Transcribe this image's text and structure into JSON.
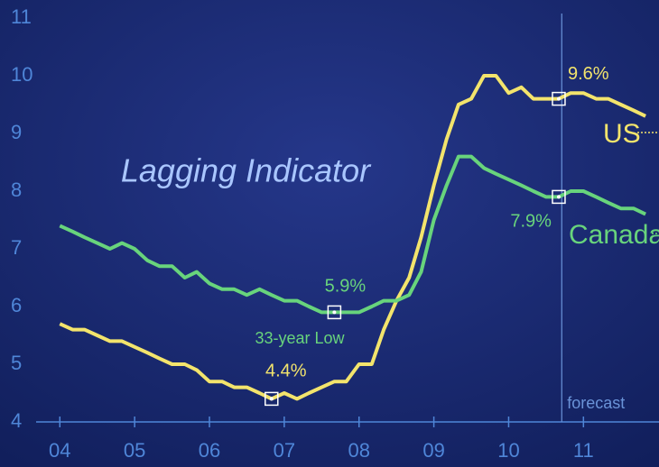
{
  "chart_data": {
    "type": "line",
    "title": "Lagging Indicator",
    "x": [
      2004,
      2004.17,
      2004.33,
      2004.5,
      2004.67,
      2004.83,
      2005,
      2005.17,
      2005.33,
      2005.5,
      2005.67,
      2005.83,
      2006,
      2006.17,
      2006.33,
      2006.5,
      2006.67,
      2006.83,
      2007,
      2007.17,
      2007.33,
      2007.5,
      2007.67,
      2007.83,
      2008,
      2008.17,
      2008.33,
      2008.5,
      2008.67,
      2008.83,
      2009,
      2009.17,
      2009.33,
      2009.5,
      2009.67,
      2009.83,
      2010,
      2010.17,
      2010.33,
      2010.5,
      2010.67,
      2010.83,
      2011,
      2011.17,
      2011.33,
      2011.5,
      2011.67,
      2011.83
    ],
    "series": [
      {
        "name": "US",
        "color": "#f3e46c",
        "values": [
          5.7,
          5.6,
          5.6,
          5.5,
          5.4,
          5.4,
          5.3,
          5.2,
          5.1,
          5.0,
          5.0,
          4.9,
          4.7,
          4.7,
          4.6,
          4.6,
          4.5,
          4.4,
          4.5,
          4.4,
          4.5,
          4.6,
          4.7,
          4.7,
          5.0,
          5.0,
          5.6,
          6.1,
          6.5,
          7.2,
          8.1,
          8.9,
          9.5,
          9.6,
          10.0,
          10.0,
          9.7,
          9.8,
          9.6,
          9.6,
          9.6,
          9.7,
          9.7,
          9.6,
          9.6,
          9.5,
          9.4,
          9.3
        ]
      },
      {
        "name": "Canada",
        "color": "#68d47c",
        "values": [
          7.4,
          7.3,
          7.2,
          7.1,
          7.0,
          7.1,
          7.0,
          6.8,
          6.7,
          6.7,
          6.5,
          6.6,
          6.4,
          6.3,
          6.3,
          6.2,
          6.3,
          6.2,
          6.1,
          6.1,
          6.0,
          5.9,
          5.9,
          5.9,
          5.9,
          6.0,
          6.1,
          6.1,
          6.2,
          6.6,
          7.5,
          8.1,
          8.6,
          8.6,
          8.4,
          8.3,
          8.2,
          8.1,
          8.0,
          7.9,
          7.9,
          8.0,
          8.0,
          7.9,
          7.8,
          7.7,
          7.7,
          7.6
        ]
      }
    ],
    "xlim": [
      2003.2,
      2012.01
    ],
    "xticks": [
      {
        "value": 2004,
        "label": "04"
      },
      {
        "value": 2005,
        "label": "05"
      },
      {
        "value": 2006,
        "label": "06"
      },
      {
        "value": 2007,
        "label": "07"
      },
      {
        "value": 2008,
        "label": "08"
      },
      {
        "value": 2009,
        "label": "09"
      },
      {
        "value": 2010,
        "label": "10"
      },
      {
        "value": 2011,
        "label": "11"
      }
    ],
    "ylim": [
      3.7,
      11.3
    ],
    "yticks": [
      4,
      5,
      6,
      7,
      8,
      9,
      10,
      11
    ],
    "annotations": [
      {
        "text": "9.6%",
        "x": 2010.67,
        "y": 9.6
      },
      {
        "text": "7.9%",
        "x": 2010.67,
        "y": 7.9
      },
      {
        "text": "5.9%",
        "x": 2007.67,
        "y": 5.9
      },
      {
        "text": "4.4%",
        "x": 2006.83,
        "y": 4.4
      }
    ],
    "low_label": "33-year Low",
    "forecast": {
      "text": "forecast",
      "x": 2010.71
    }
  }
}
